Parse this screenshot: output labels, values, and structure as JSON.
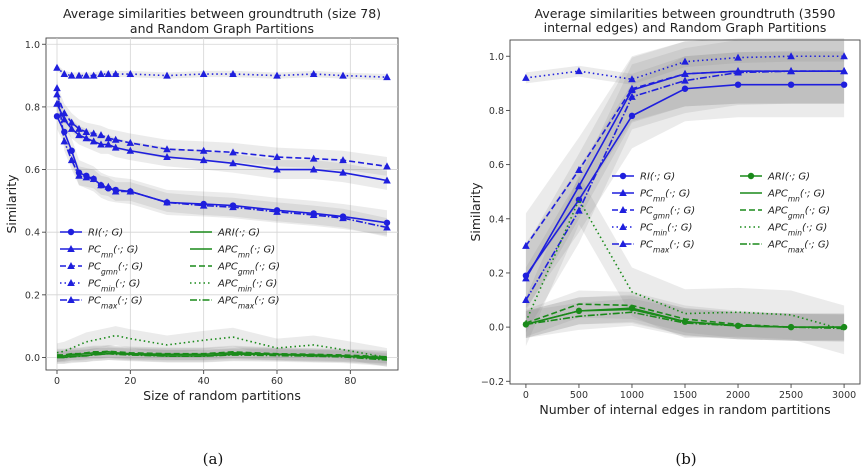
{
  "chart_data": [
    {
      "type": "line",
      "title": "Average similarities between groundtruth (size 78)\nand Random Graph Partitions",
      "xlabel": "Size of random partitions",
      "ylabel": "Similarity",
      "xlim": [
        -3,
        93
      ],
      "ylim": [
        -0.04,
        1.02
      ],
      "xticks": [
        0,
        20,
        40,
        60,
        80
      ],
      "yticks": [
        0.0,
        0.2,
        0.4,
        0.6,
        0.8,
        1.0
      ],
      "ytick_labels": [
        "0.0",
        "0.2",
        "0.4",
        "0.6",
        "0.8",
        "1.0"
      ],
      "grid": true,
      "legend_placement": "lower-left",
      "legend_columns": [
        [
          "RI(·; G)",
          "PC_mn(·; G)",
          "PC_gmn(·; G)",
          "PC_min(·; G)",
          "PC_max(·; G)"
        ],
        [
          "ARI(·; G)",
          "APC_mn(·; G)",
          "APC_gmn(·; G)",
          "APC_min(·; G)",
          "APC_max(·; G)"
        ]
      ],
      "x": [
        0,
        2,
        4,
        6,
        8,
        10,
        12,
        14,
        16,
        20,
        30,
        40,
        48,
        60,
        70,
        78,
        90
      ],
      "series": [
        {
          "name": "RI(·; G)",
          "color": "#1f1fdd",
          "dash": "solid",
          "marker": "circle",
          "values": [
            0.77,
            0.72,
            0.66,
            0.59,
            0.58,
            0.57,
            0.55,
            0.54,
            0.535,
            0.53,
            0.495,
            0.49,
            0.485,
            0.47,
            0.46,
            0.45,
            0.43
          ],
          "band": 0.04
        },
        {
          "name": "PC_mn(·; G)",
          "color": "#1f1fdd",
          "dash": "solid",
          "marker": "triangle",
          "values": [
            0.81,
            0.76,
            0.73,
            0.71,
            0.7,
            0.69,
            0.68,
            0.68,
            0.67,
            0.66,
            0.64,
            0.63,
            0.62,
            0.6,
            0.6,
            0.59,
            0.565
          ],
          "band": 0.03
        },
        {
          "name": "PC_gmn(·; G)",
          "color": "#1f1fdd",
          "dash": "6,3",
          "marker": "triangle",
          "values": [
            0.84,
            0.78,
            0.75,
            0.73,
            0.72,
            0.715,
            0.71,
            0.7,
            0.695,
            0.685,
            0.665,
            0.66,
            0.655,
            0.64,
            0.635,
            0.63,
            0.61
          ],
          "band": 0.03
        },
        {
          "name": "PC_min(·; G)",
          "color": "#1f1fdd",
          "dash": "1.5,3",
          "marker": "triangle",
          "values": [
            0.925,
            0.905,
            0.9,
            0.9,
            0.9,
            0.9,
            0.905,
            0.905,
            0.905,
            0.905,
            0.9,
            0.905,
            0.905,
            0.9,
            0.905,
            0.9,
            0.895
          ],
          "band": 0.01
        },
        {
          "name": "PC_max(·; G)",
          "color": "#1f1fdd",
          "dash": "7,2,1.5,2",
          "marker": "triangle",
          "values": [
            0.86,
            0.69,
            0.63,
            0.58,
            0.575,
            0.57,
            0.55,
            0.545,
            0.53,
            0.53,
            0.495,
            0.485,
            0.48,
            0.465,
            0.455,
            0.445,
            0.415
          ],
          "band": 0.03
        },
        {
          "name": "ARI(·; G)",
          "color": "#1a8a1a",
          "dash": "solid",
          "marker": "none",
          "values": [
            0.0,
            0.0,
            0.005,
            0.005,
            0.005,
            0.01,
            0.01,
            0.012,
            0.012,
            0.01,
            0.005,
            0.005,
            0.01,
            0.01,
            0.005,
            0.005,
            -0.005
          ],
          "band": 0.02
        },
        {
          "name": "APC_mn(·; G)",
          "color": "#1a8a1a",
          "dash": "solid",
          "marker": "none",
          "values": [
            0.005,
            0.005,
            0.01,
            0.01,
            0.012,
            0.015,
            0.015,
            0.018,
            0.015,
            0.012,
            0.01,
            0.01,
            0.015,
            0.01,
            0.008,
            0.005,
            0.0
          ],
          "band": 0.02
        },
        {
          "name": "APC_gmn(·; G)",
          "color": "#1a8a1a",
          "dash": "6,3",
          "marker": "none",
          "values": [
            0.008,
            0.008,
            0.012,
            0.012,
            0.015,
            0.018,
            0.018,
            0.02,
            0.018,
            0.015,
            0.012,
            0.012,
            0.018,
            0.012,
            0.01,
            0.008,
            0.002
          ],
          "band": 0.02
        },
        {
          "name": "APC_min(·; G)",
          "color": "#1a8a1a",
          "dash": "1.5,3",
          "marker": "none",
          "values": [
            0.015,
            0.02,
            0.03,
            0.04,
            0.05,
            0.055,
            0.06,
            0.065,
            0.07,
            0.06,
            0.04,
            0.055,
            0.065,
            0.03,
            0.04,
            0.025,
            0.0
          ],
          "band": 0.03
        },
        {
          "name": "APC_max(·; G)",
          "color": "#1a8a1a",
          "dash": "7,2,1.5,2",
          "marker": "none",
          "values": [
            0.0,
            0.0,
            0.002,
            0.004,
            0.006,
            0.008,
            0.01,
            0.012,
            0.01,
            0.008,
            0.004,
            0.004,
            0.008,
            0.006,
            0.004,
            0.002,
            -0.008
          ],
          "band": 0.02
        }
      ]
    },
    {
      "type": "line",
      "title": "Average similarities between groundtruth (3590\ninternal edges) and Random Graph Partitions",
      "xlabel": "Number of internal edges in random partitions",
      "ylabel": "Similarity",
      "xlim": [
        -150,
        3150
      ],
      "ylim": [
        -0.21,
        1.06
      ],
      "xticks": [
        0,
        500,
        1000,
        1500,
        2000,
        2500,
        3000
      ],
      "yticks": [
        -0.2,
        0.0,
        0.2,
        0.4,
        0.6,
        0.8,
        1.0
      ],
      "ytick_labels": [
        "−0.2",
        "0.0",
        "0.2",
        "0.4",
        "0.6",
        "0.8",
        "1.0"
      ],
      "grid": false,
      "legend_placement": "center",
      "legend_columns": [
        [
          "RI(·; G)",
          "PC_mn(·; G)",
          "PC_gmn(·; G)",
          "PC_min(·; G)",
          "PC_max(·; G)"
        ],
        [
          "ARI(·; G)",
          "APC_mn(·; G)",
          "APC_gmn(·; G)",
          "APC_min(·; G)",
          "APC_max(·; G)"
        ]
      ],
      "x": [
        0,
        500,
        1000,
        1500,
        2000,
        2500,
        3000
      ],
      "series": [
        {
          "name": "RI(·; G)",
          "color": "#1f1fdd",
          "dash": "solid",
          "marker": "circle",
          "values": [
            0.19,
            0.47,
            0.78,
            0.88,
            0.895,
            0.895,
            0.895
          ],
          "band": 0.12
        },
        {
          "name": "PC_mn(·; G)",
          "color": "#1f1fdd",
          "dash": "solid",
          "marker": "triangle",
          "values": [
            0.18,
            0.52,
            0.875,
            0.935,
            0.945,
            0.945,
            0.945
          ],
          "band": 0.12
        },
        {
          "name": "PC_gmn(·; G)",
          "color": "#1f1fdd",
          "dash": "6,3",
          "marker": "triangle",
          "values": [
            0.3,
            0.58,
            0.88,
            0.935,
            0.945,
            0.945,
            0.945
          ],
          "band": 0.12
        },
        {
          "name": "PC_min(·; G)",
          "color": "#1f1fdd",
          "dash": "1.5,3",
          "marker": "triangle",
          "values": [
            0.92,
            0.945,
            0.915,
            0.98,
            0.995,
            1.0,
            1.0
          ],
          "band": 0.02
        },
        {
          "name": "PC_max(·; G)",
          "color": "#1f1fdd",
          "dash": "7,2,1.5,2",
          "marker": "triangle",
          "values": [
            0.1,
            0.43,
            0.85,
            0.91,
            0.94,
            0.945,
            0.945
          ],
          "band": 0.12
        },
        {
          "name": "ARI(·; G)",
          "color": "#1a8a1a",
          "dash": "solid",
          "marker": "circle",
          "values": [
            0.01,
            0.06,
            0.07,
            0.02,
            0.005,
            0.0,
            0.0
          ],
          "band": 0.05
        },
        {
          "name": "APC_mn(·; G)",
          "color": "#1a8a1a",
          "dash": "solid",
          "marker": "none",
          "values": [
            0.01,
            0.06,
            0.065,
            0.02,
            0.005,
            0.0,
            0.0
          ],
          "band": 0.05
        },
        {
          "name": "APC_gmn(·; G)",
          "color": "#1a8a1a",
          "dash": "6,3",
          "marker": "none",
          "values": [
            0.015,
            0.085,
            0.08,
            0.03,
            0.01,
            0.0,
            0.0
          ],
          "band": 0.05
        },
        {
          "name": "APC_min(·; G)",
          "color": "#1a8a1a",
          "dash": "1.5,3",
          "marker": "none",
          "values": [
            0.02,
            0.47,
            0.13,
            0.05,
            0.055,
            0.045,
            -0.01
          ],
          "band": 0.09
        },
        {
          "name": "APC_max(·; G)",
          "color": "#1a8a1a",
          "dash": "7,2,1.5,2",
          "marker": "none",
          "values": [
            0.01,
            0.04,
            0.055,
            0.015,
            0.005,
            0.0,
            -0.005
          ],
          "band": 0.05
        }
      ]
    }
  ],
  "captions": [
    "(a)",
    "(b)"
  ]
}
